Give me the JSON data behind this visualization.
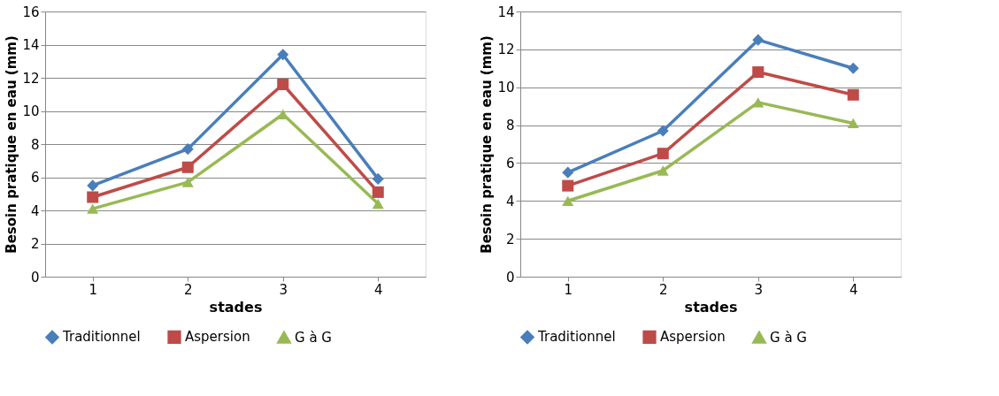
{
  "chart_data": [
    {
      "type": "line",
      "categories": [
        "1",
        "2",
        "3",
        "4"
      ],
      "xlabel": "stades",
      "ylabel": "Besoin pratique en eau (mm)",
      "ylim": [
        0,
        16
      ],
      "yticks": [
        0,
        2,
        4,
        6,
        8,
        10,
        12,
        14,
        16
      ],
      "grid": "y",
      "legend": "bottom",
      "series": [
        {
          "name": "Traditionnel",
          "color": "#4a7ebb",
          "marker": "diamond",
          "values": [
            5.5,
            7.7,
            13.4,
            5.9
          ]
        },
        {
          "name": "Aspersion",
          "color": "#be4b48",
          "marker": "square",
          "values": [
            4.8,
            6.6,
            11.6,
            5.1
          ]
        },
        {
          "name": "G à G",
          "color": "#98b954",
          "marker": "triangle",
          "values": [
            4.1,
            5.7,
            9.8,
            4.4
          ]
        }
      ]
    },
    {
      "type": "line",
      "categories": [
        "1",
        "2",
        "3",
        "4"
      ],
      "xlabel": "stades",
      "ylabel": "Besoin pratique en eau (mm)",
      "ylim": [
        0,
        14
      ],
      "yticks": [
        0,
        2,
        4,
        6,
        8,
        10,
        12,
        14
      ],
      "grid": "y",
      "legend": "bottom",
      "series": [
        {
          "name": "Traditionnel",
          "color": "#4a7ebb",
          "marker": "diamond",
          "values": [
            5.5,
            7.7,
            12.5,
            11.0
          ]
        },
        {
          "name": "Aspersion",
          "color": "#be4b48",
          "marker": "square",
          "values": [
            4.8,
            6.5,
            10.8,
            9.6
          ]
        },
        {
          "name": "G à G",
          "color": "#98b954",
          "marker": "triangle",
          "values": [
            4.0,
            5.6,
            9.2,
            8.1
          ]
        }
      ]
    }
  ]
}
